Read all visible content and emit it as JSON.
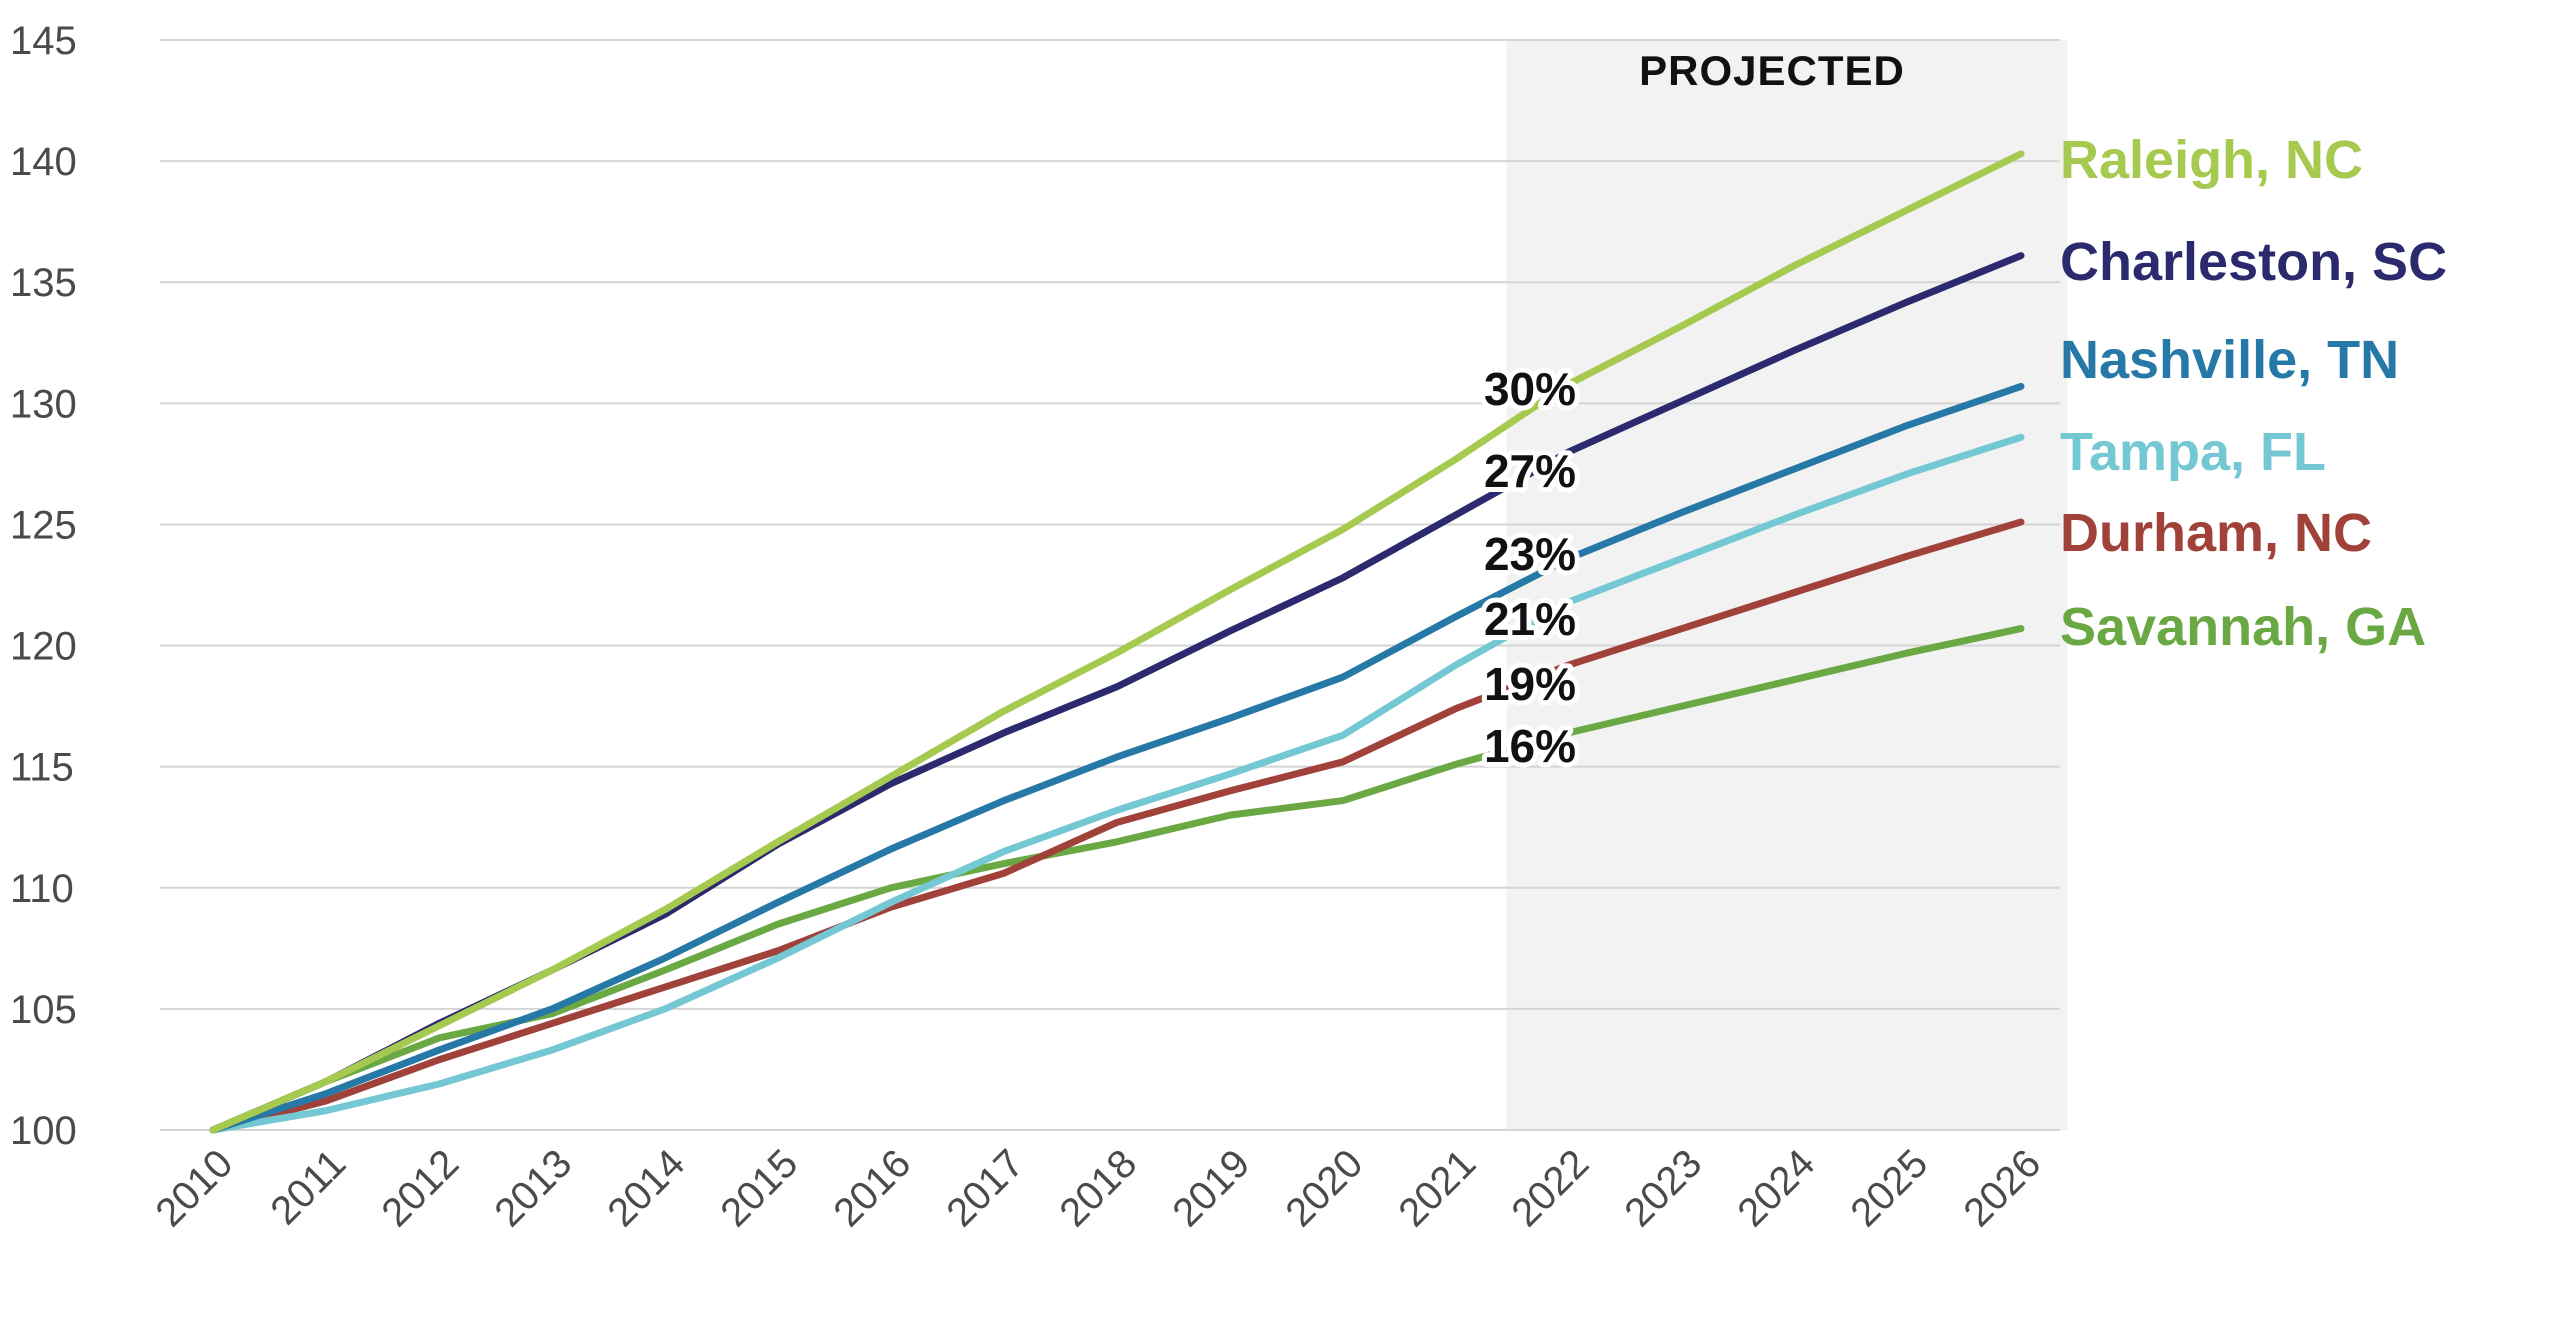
{
  "chart_data": {
    "type": "line",
    "title": "",
    "xlabel": "",
    "ylabel": "",
    "ylim": [
      100,
      145
    ],
    "yticks": [
      "100",
      "105",
      "110",
      "115",
      "120",
      "125",
      "130",
      "135",
      "140",
      "145"
    ],
    "categories": [
      "2010",
      "2011",
      "2012",
      "2013",
      "2014",
      "2015",
      "2016",
      "2017",
      "2018",
      "2019",
      "2020",
      "2021",
      "2022",
      "2023",
      "2024",
      "2025",
      "2026"
    ],
    "grid": true,
    "legend": "right, labels at line ends",
    "projected": {
      "label": "PROJECTED",
      "from": "2022",
      "to": "2026"
    },
    "series": [
      {
        "name": "Raleigh, NC",
        "color": "#a6c94f",
        "values": [
          100,
          102,
          104.3,
          106.6,
          109.1,
          111.9,
          114.6,
          117.3,
          119.7,
          122.3,
          124.8,
          127.7,
          130.8,
          133.2,
          135.7,
          138.0,
          140.3
        ],
        "pct_label": "30%"
      },
      {
        "name": "Charleston, SC",
        "color": "#2c2a6e",
        "values": [
          100,
          102,
          104.4,
          106.6,
          108.9,
          111.8,
          114.3,
          116.4,
          118.3,
          120.6,
          122.8,
          125.4,
          128.0,
          130.1,
          132.2,
          134.2,
          136.1
        ],
        "pct_label": "27%"
      },
      {
        "name": "Nashville, TN",
        "color": "#2678a6",
        "values": [
          100,
          101.5,
          103.3,
          105.0,
          107.1,
          109.4,
          111.6,
          113.6,
          115.4,
          117.0,
          118.7,
          121.2,
          123.6,
          125.5,
          127.3,
          129.1,
          130.7
        ],
        "pct_label": "23%"
      },
      {
        "name": "Tampa, FL",
        "color": "#74c8d3",
        "values": [
          100,
          100.8,
          101.9,
          103.3,
          105.0,
          107.1,
          109.4,
          111.5,
          113.2,
          114.7,
          116.3,
          119.2,
          121.8,
          123.6,
          125.4,
          127.1,
          128.6
        ],
        "pct_label": "21%"
      },
      {
        "name": "Durham, NC",
        "color": "#a0413a",
        "values": [
          100,
          101.2,
          102.9,
          104.4,
          105.9,
          107.4,
          109.2,
          110.6,
          112.7,
          114.0,
          115.2,
          117.4,
          119.2,
          120.7,
          122.2,
          123.7,
          125.1
        ],
        "pct_label": "19%"
      },
      {
        "name": "Savannah, GA",
        "color": "#6aa843",
        "values": [
          100,
          102.0,
          103.8,
          104.8,
          106.6,
          108.5,
          110.0,
          111.0,
          111.9,
          113.0,
          113.6,
          115.1,
          116.4,
          117.5,
          118.6,
          119.7,
          120.7
        ],
        "pct_label": "16%"
      }
    ]
  }
}
